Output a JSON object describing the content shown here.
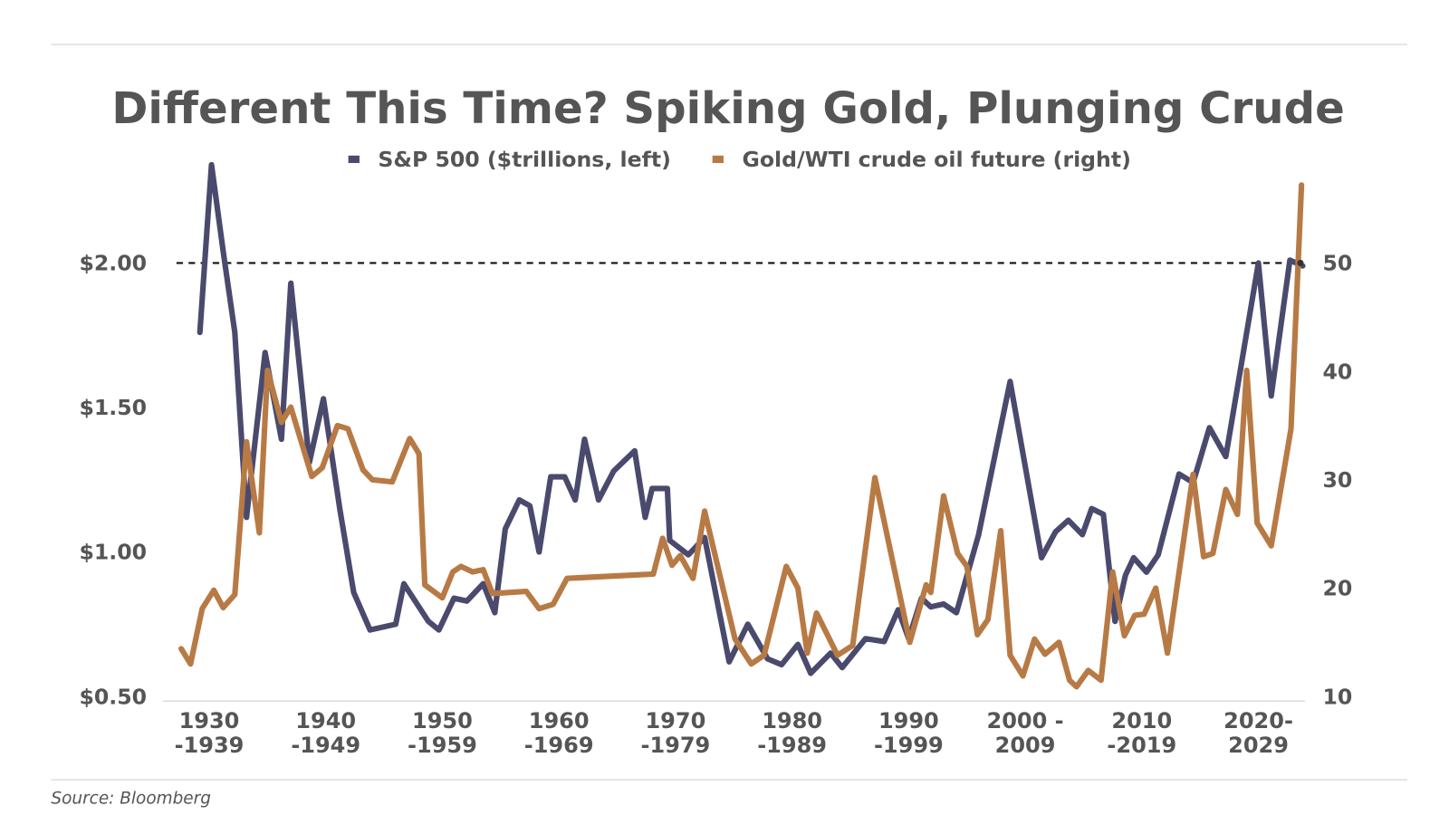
{
  "chart_data": {
    "type": "line",
    "title": "Different This Time? Spiking Gold, Plunging Crude",
    "source": "Source: Bloomberg",
    "xlim": [
      1926,
      2024
    ],
    "xticks": [
      {
        "value": 1930,
        "label": "1930\n-1939"
      },
      {
        "value": 1940,
        "label": "1940\n-1949"
      },
      {
        "value": 1950,
        "label": "1950\n-1959"
      },
      {
        "value": 1960,
        "label": "1960\n-1969"
      },
      {
        "value": 1970,
        "label": "1970\n-1979"
      },
      {
        "value": 1980,
        "label": "1980\n-1989"
      },
      {
        "value": 1990,
        "label": "1990\n-1999"
      },
      {
        "value": 2000,
        "label": "2000 -\n2009"
      },
      {
        "value": 2010,
        "label": "2010\n-2019"
      },
      {
        "value": 2020,
        "label": "2020-\n2029"
      }
    ],
    "ylim": [
      0.5,
      2.375
    ],
    "yticks": [
      {
        "value": 0.5,
        "label": "$0.50"
      },
      {
        "value": 1.0,
        "label": "$1.00"
      },
      {
        "value": 1.5,
        "label": "$1.50"
      },
      {
        "value": 2.0,
        "label": "$2.00"
      }
    ],
    "y2lim": [
      10,
      60
    ],
    "y2ticks": [
      10,
      20,
      30,
      40,
      50
    ],
    "hline": 2.0,
    "legend": "top",
    "series": [
      {
        "name": "S&P 500 ($trillions, left)",
        "color": "#4a4a6e",
        "axis": "y",
        "x": [
          1929.2,
          1930.2,
          1931.2,
          1932.2,
          1933.2,
          1934.8,
          1936.2,
          1937,
          1938.6,
          1939.8,
          1941.2,
          1942.4,
          1943.8,
          1946,
          1946.7,
          1948.8,
          1949.7,
          1951,
          1952.1,
          1953.5,
          1954.5,
          1955.4,
          1956.6,
          1957.5,
          1958.3,
          1959.3,
          1960.5,
          1961.4,
          1962.2,
          1963.4,
          1964.7,
          1966.5,
          1967.4,
          1968,
          1969.3,
          1969.5,
          1971.1,
          1972.5,
          1974.6,
          1976.2,
          1977.9,
          1979.1,
          1980.5,
          1981.6,
          1983.3,
          1984.3,
          1986.3,
          1987.9,
          1989.1,
          1990,
          1991.1,
          1991.9,
          1993,
          1994.1,
          1996,
          1998.7,
          2001.4,
          2002.6,
          2003.7,
          2004.9,
          2005.7,
          2006.7,
          2007.7,
          2008.6,
          2009.3,
          2010.4,
          2011.4,
          2013.2,
          2014.4,
          2015.8,
          2017.2,
          2020,
          2021.1,
          2022.7,
          2023.8
        ],
        "values": [
          1.76,
          2.34,
          2.04,
          1.76,
          1.12,
          1.69,
          1.39,
          1.93,
          1.31,
          1.53,
          1.15,
          0.86,
          0.73,
          0.75,
          0.89,
          0.76,
          0.73,
          0.84,
          0.83,
          0.89,
          0.79,
          1.08,
          1.18,
          1.16,
          1.0,
          1.26,
          1.26,
          1.18,
          1.39,
          1.18,
          1.28,
          1.35,
          1.12,
          1.22,
          1.22,
          1.04,
          0.99,
          1.05,
          0.62,
          0.75,
          0.63,
          0.61,
          0.68,
          0.58,
          0.65,
          0.6,
          0.7,
          0.69,
          0.8,
          0.7,
          0.84,
          0.81,
          0.82,
          0.79,
          1.06,
          1.59,
          0.98,
          1.07,
          1.11,
          1.06,
          1.15,
          1.13,
          0.76,
          0.92,
          0.98,
          0.93,
          0.99,
          1.27,
          1.24,
          1.43,
          1.33,
          2.0,
          1.54,
          2.01,
          1.99
        ]
      },
      {
        "name": "Gold/WTI crude oil future (right)",
        "color": "#b87a45",
        "axis": "y2",
        "x": [
          1927.6,
          1928.4,
          1929.4,
          1930.4,
          1931.2,
          1932.2,
          1933.2,
          1934.3,
          1935,
          1936.2,
          1937,
          1938.8,
          1939.7,
          1941,
          1941.9,
          1943.2,
          1944,
          1945.7,
          1947.2,
          1948,
          1948.5,
          1950,
          1950.9,
          1951.6,
          1952.6,
          1953.5,
          1954.3,
          1957.2,
          1958.3,
          1959.5,
          1960.7,
          1968.1,
          1968.9,
          1969.7,
          1970.4,
          1971.5,
          1972.5,
          1975.1,
          1976.5,
          1977.6,
          1979.5,
          1980.5,
          1981.3,
          1982.1,
          1983.9,
          1985.2,
          1987.1,
          1990.1,
          1991.5,
          1991.9,
          1993,
          1994.2,
          1995,
          1995.9,
          1996.8,
          1997.9,
          1998.7,
          1999.8,
          2000.8,
          2001.7,
          2002.9,
          2003.8,
          2004.4,
          2005.4,
          2006.5,
          2007.5,
          2008.5,
          2009.4,
          2010.2,
          2011.2,
          2012.2,
          2014.4,
          2015.3,
          2016.1,
          2017.2,
          2018.2,
          2019,
          2019.9,
          2021.1,
          2022.8,
          2023.7
        ],
        "values": [
          14.4,
          13.0,
          18.1,
          19.8,
          18.2,
          19.4,
          33.5,
          25.1,
          40.1,
          35.3,
          36.7,
          30.3,
          31.1,
          35.0,
          34.7,
          30.9,
          30.0,
          29.8,
          33.8,
          32.4,
          20.3,
          19.1,
          21.5,
          22.0,
          21.5,
          21.7,
          19.5,
          19.7,
          18.1,
          18.5,
          20.9,
          21.3,
          24.6,
          22.1,
          23.0,
          20.9,
          27.1,
          15.3,
          13.0,
          13.8,
          22.0,
          20.0,
          14.0,
          17.7,
          13.8,
          14.7,
          30.2,
          15.0,
          20.3,
          19.6,
          28.5,
          23.2,
          22.0,
          15.7,
          17.1,
          25.3,
          13.8,
          11.9,
          15.3,
          13.9,
          15.0,
          11.5,
          10.9,
          12.4,
          11.5,
          21.5,
          15.6,
          17.5,
          17.6,
          20.0,
          14.0,
          30.5,
          22.9,
          23.2,
          29.1,
          26.8,
          40.1,
          26.0,
          23.9,
          34.7,
          57.2
        ]
      }
    ]
  }
}
